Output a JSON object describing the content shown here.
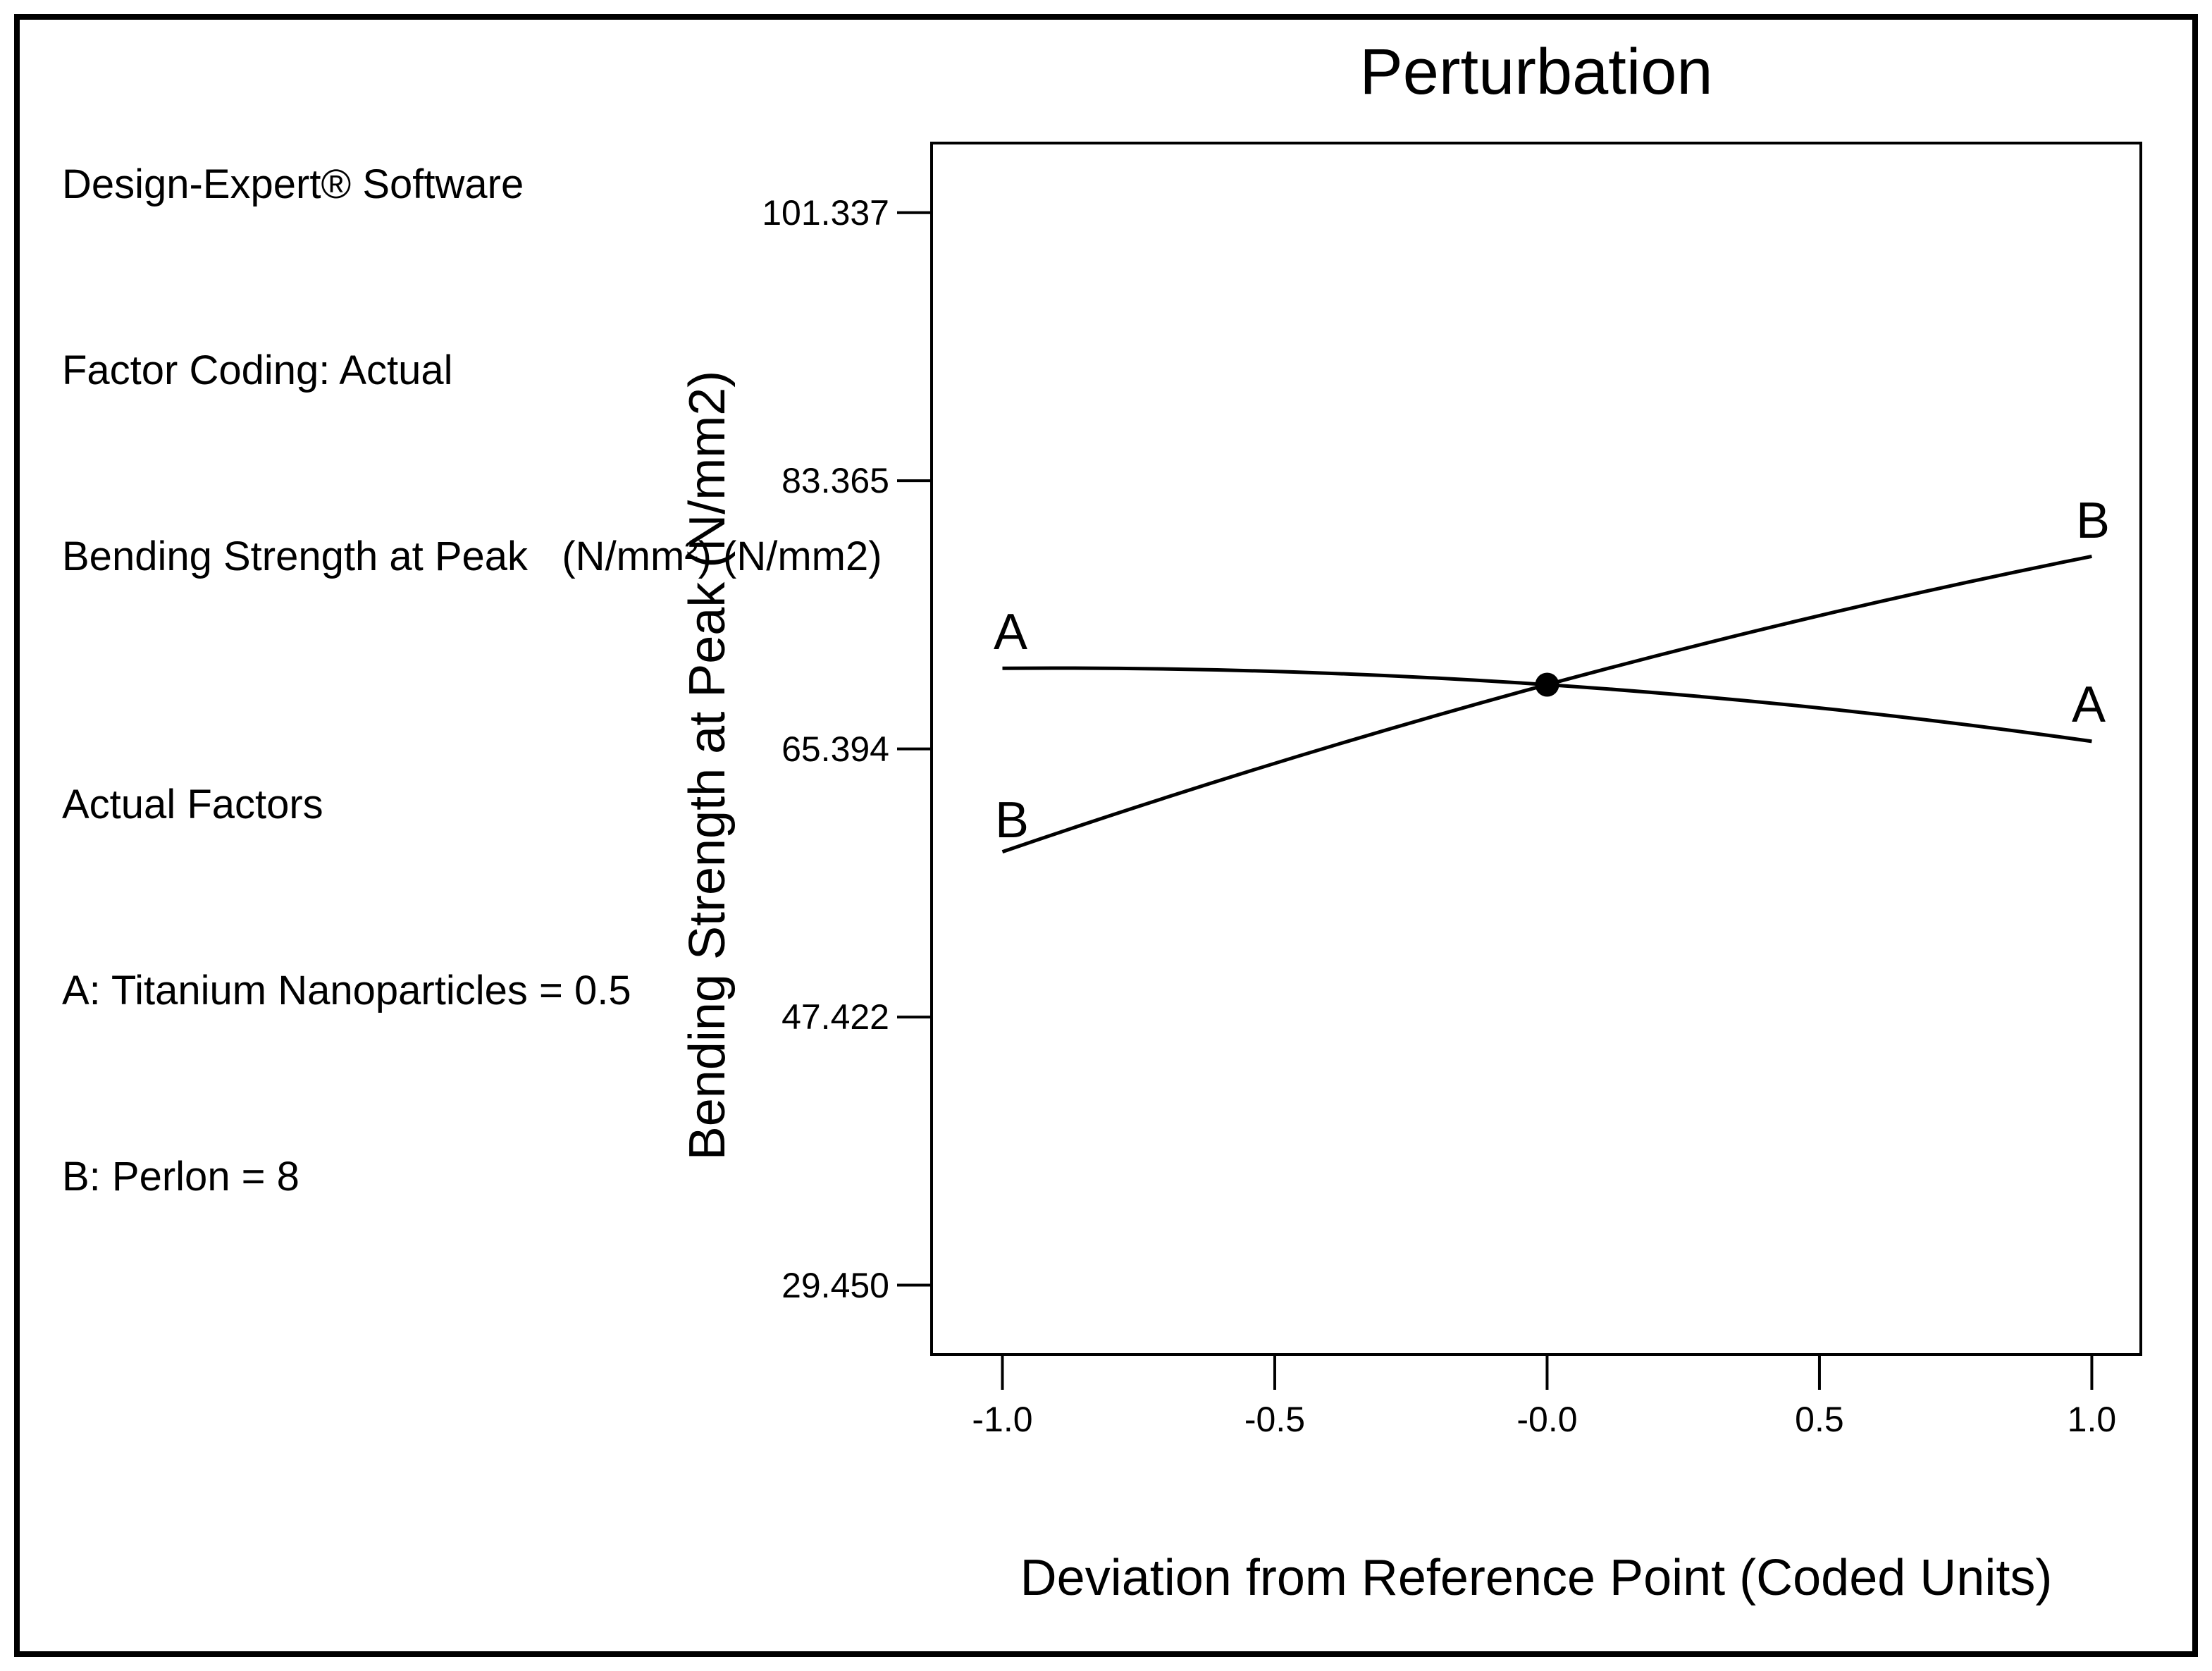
{
  "info_panel": {
    "lines": [
      "Design-Expert® Software",
      "Factor Coding: Actual",
      "Bending Strength at Peak   (N/mm²) (N/mm2)",
      "Actual Factors",
      "A: Titanium Nanoparticles = 0.5",
      "B: Perlon = 8"
    ]
  },
  "chart_data": {
    "type": "line",
    "title": "Perturbation",
    "xlabel": "Deviation from Reference Point (Coded Units)",
    "ylabel": "Bending Strength at Peak (N/mm2)",
    "x_ticks": [
      "-1.0",
      "-0.5",
      "-0.0",
      "0.5",
      "1.0"
    ],
    "x_tick_values": [
      -1.0,
      -0.5,
      0.0,
      0.5,
      1.0
    ],
    "y_ticks": [
      "101.337",
      "83.365",
      "65.394",
      "47.422",
      "29.450"
    ],
    "y_tick_values": [
      101.337,
      83.365,
      65.394,
      47.422,
      29.45
    ],
    "xlim": [
      -1.13,
      1.09
    ],
    "ylim": [
      24.8,
      106.0
    ],
    "grid": false,
    "legend_position": "none",
    "line_color": "#000000",
    "background_color": "#ffffff",
    "series": [
      {
        "label": "A",
        "x": [
          -1.0,
          0.0,
          1.0
        ],
        "values": [
          70.8,
          69.7,
          65.9
        ]
      },
      {
        "label": "B",
        "x": [
          -1.0,
          0.0,
          1.0
        ],
        "values": [
          58.5,
          69.7,
          78.3
        ]
      }
    ],
    "reference_point": {
      "x": 0.0,
      "y": 69.7
    }
  }
}
